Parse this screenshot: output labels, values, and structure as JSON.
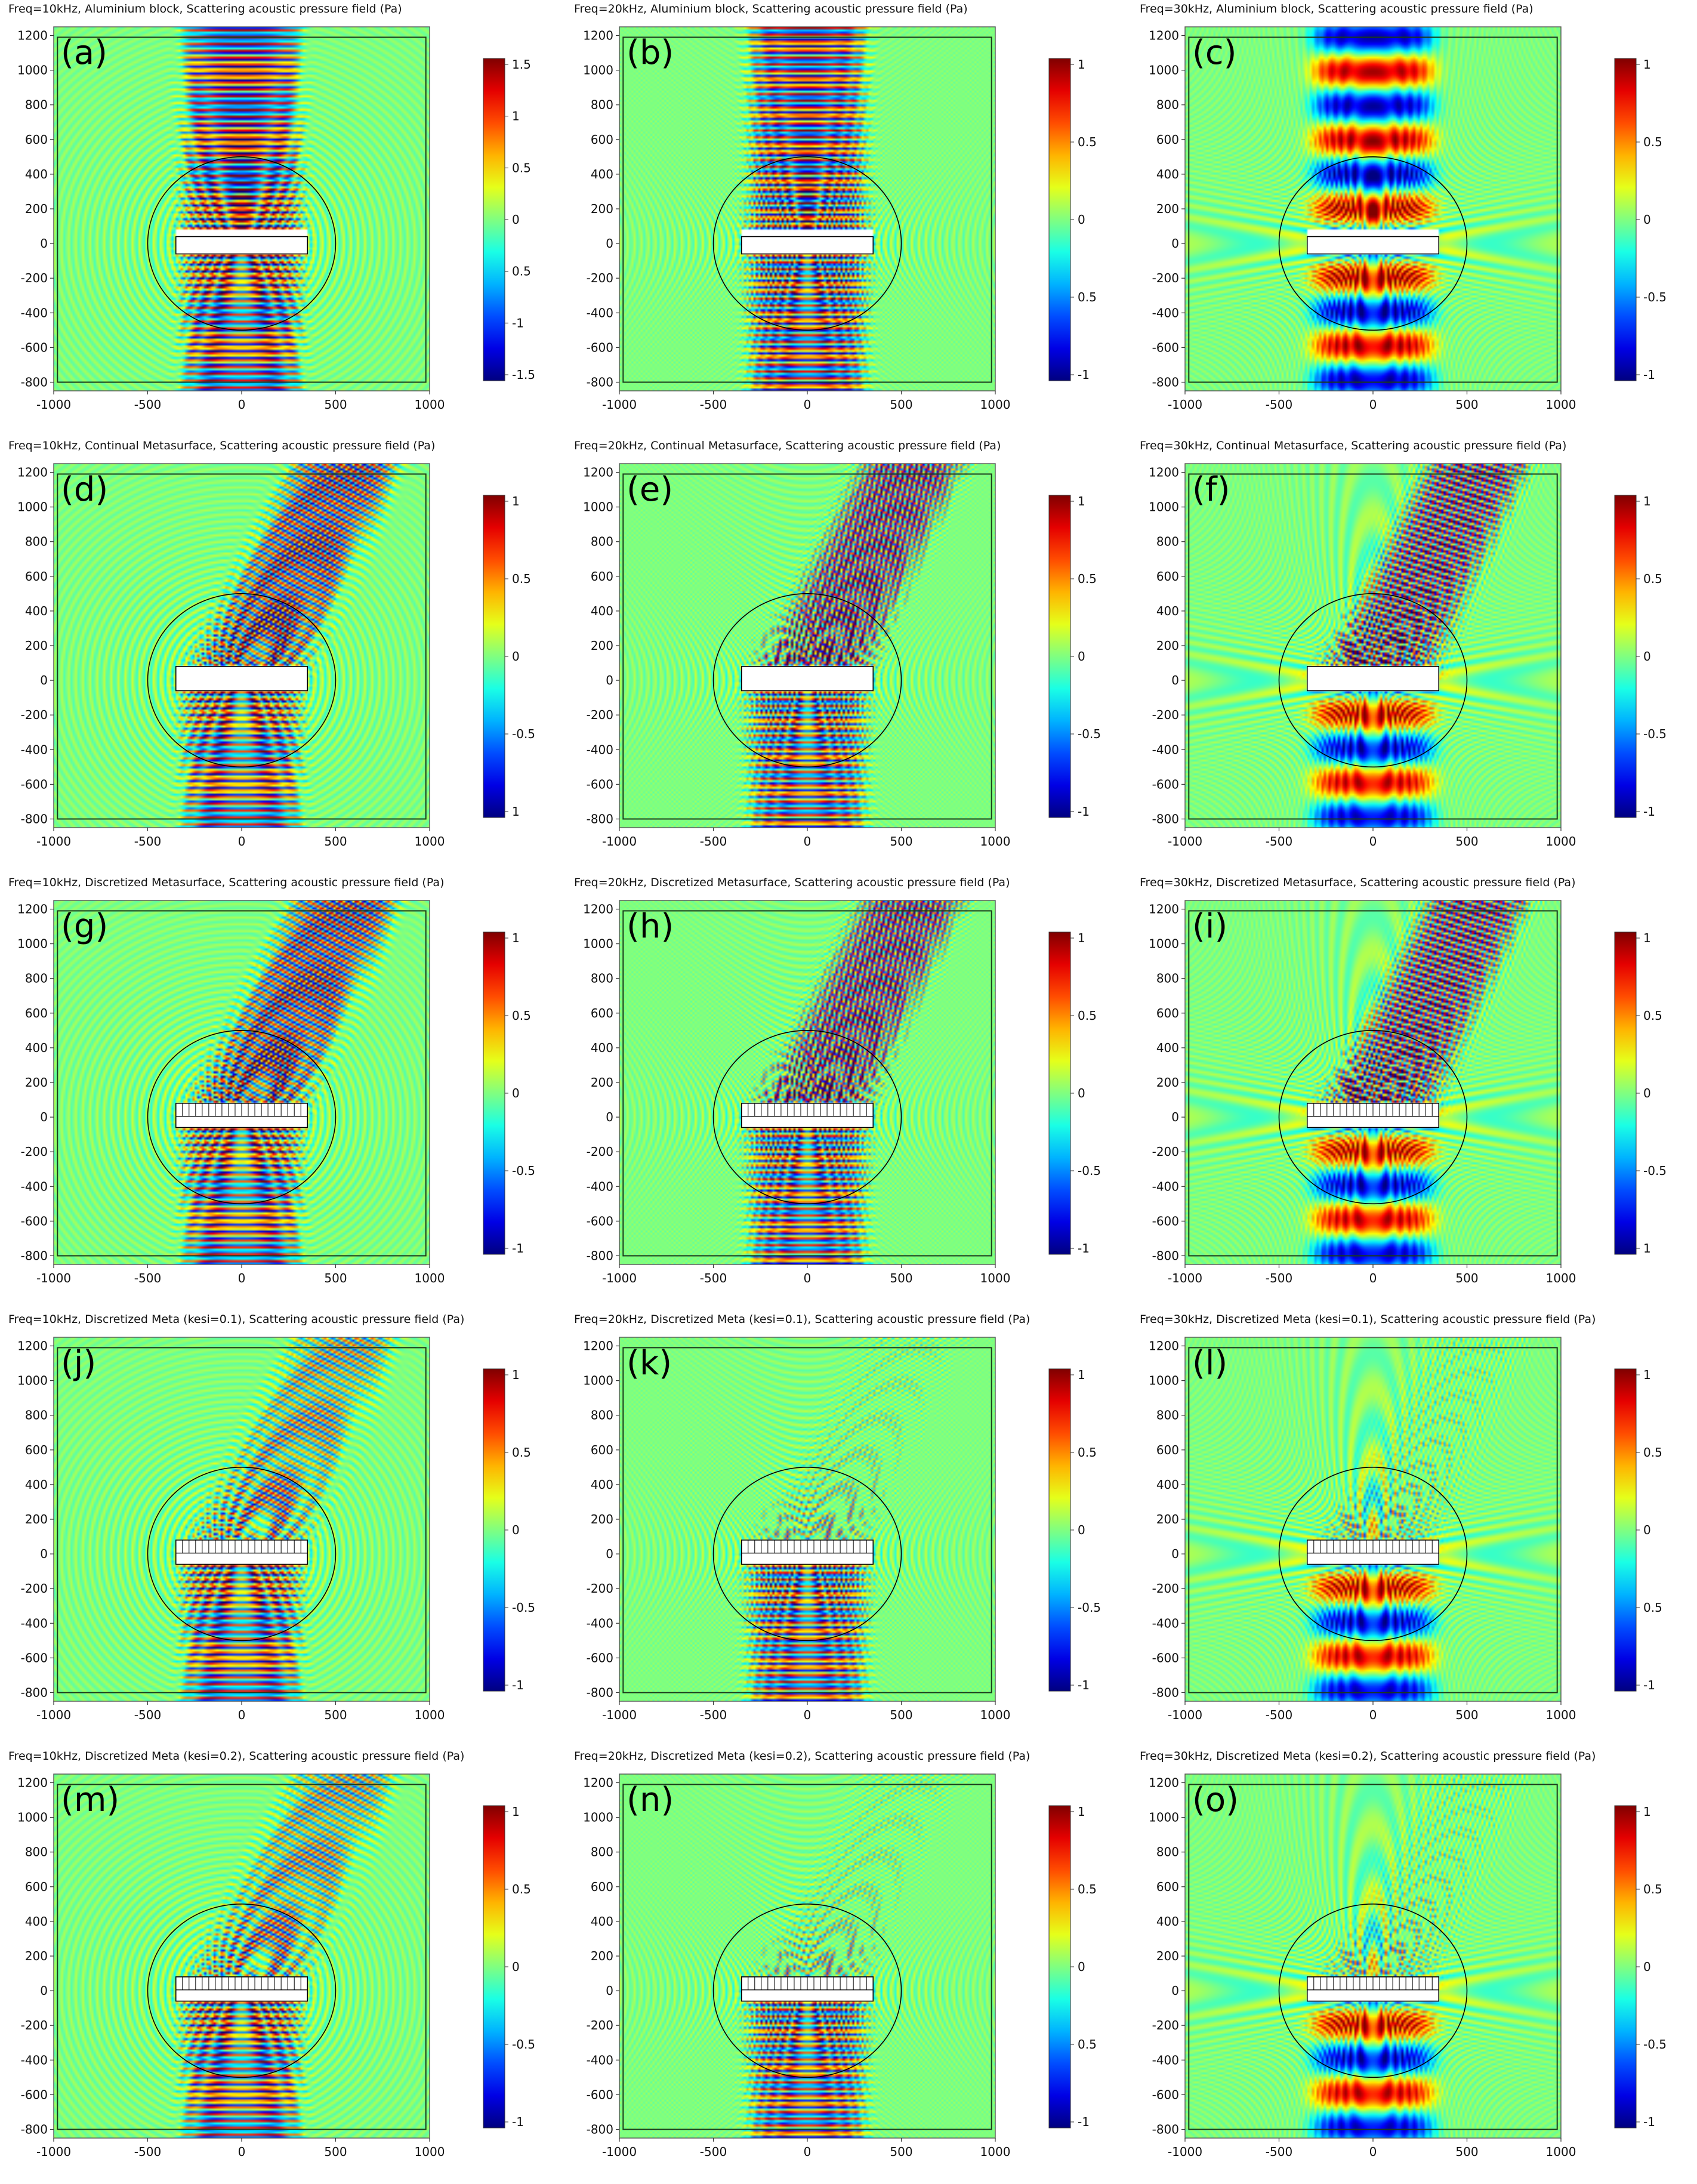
{
  "figure": {
    "rows": 5,
    "cols": 3
  },
  "chart_data": [
    {
      "type": "heatmap",
      "panel_label": "(a)",
      "title": "Freq=10kHz, Aluminium block, Scattering acoustic pressure field (Pa)",
      "freq_khz": 10,
      "structure": "aluminium",
      "xlim": [
        -1000,
        1000
      ],
      "ylim": [
        -850,
        1250
      ],
      "xticks": [
        -1000,
        -500,
        0,
        500,
        1000
      ],
      "yticks": [
        -800,
        -600,
        -400,
        -200,
        0,
        200,
        400,
        600,
        800,
        1000,
        1200
      ],
      "colorbar": {
        "min": -1.5,
        "max": 1.5,
        "ticks": [
          "1.5",
          "1",
          "0.5",
          "0",
          "0.5",
          "-1",
          "-1.5"
        ]
      },
      "colormap": "jet",
      "beam": "normal"
    },
    {
      "type": "heatmap",
      "panel_label": "(b)",
      "title": "Freq=20kHz, Aluminium block, Scattering acoustic pressure field (Pa)",
      "freq_khz": 20,
      "structure": "aluminium",
      "xlim": [
        -1000,
        1000
      ],
      "ylim": [
        -850,
        1250
      ],
      "xticks": [
        -1000,
        -500,
        0,
        500,
        1000
      ],
      "yticks": [
        -800,
        -600,
        -400,
        -200,
        0,
        200,
        400,
        600,
        800,
        1000,
        1200
      ],
      "colorbar": {
        "min": -1.5,
        "max": 1.5,
        "ticks": [
          "1",
          "0.5",
          "0",
          "0.5",
          "-1"
        ]
      },
      "colormap": "jet",
      "beam": "normal"
    },
    {
      "type": "heatmap",
      "panel_label": "(c)",
      "title": "Freq=30kHz, Aluminium block, Scattering acoustic pressure field (Pa)",
      "freq_khz": 30,
      "structure": "aluminium",
      "xlim": [
        -1000,
        1000
      ],
      "ylim": [
        -850,
        1250
      ],
      "xticks": [
        -1000,
        -500,
        0,
        500,
        1000
      ],
      "yticks": [
        -800,
        -600,
        -400,
        -200,
        0,
        200,
        400,
        600,
        800,
        1000,
        1200
      ],
      "colorbar": {
        "min": -1.5,
        "max": 1.5,
        "ticks": [
          "1",
          "0.5",
          "0",
          "-0.5",
          "-1"
        ]
      },
      "colormap": "jet",
      "beam": "normal"
    },
    {
      "type": "heatmap",
      "panel_label": "(d)",
      "title": "Freq=10kHz, Continual Metasurface, Scattering acoustic pressure field (Pa)",
      "freq_khz": 10,
      "structure": "continual",
      "xlim": [
        -1000,
        1000
      ],
      "ylim": [
        -850,
        1250
      ],
      "xticks": [
        -1000,
        -500,
        0,
        500,
        1000
      ],
      "yticks": [
        -800,
        -600,
        -400,
        -200,
        0,
        200,
        400,
        600,
        800,
        1000,
        1200
      ],
      "colorbar": {
        "min": -1.2,
        "max": 1.2,
        "ticks": [
          "1",
          "0.5",
          "0",
          "-0.5",
          "1"
        ]
      },
      "colormap": "jet",
      "beam": "steered"
    },
    {
      "type": "heatmap",
      "panel_label": "(e)",
      "title": "Freq=20kHz, Continual Metasurface, Scattering acoustic pressure field (Pa)",
      "freq_khz": 20,
      "structure": "continual",
      "xlim": [
        -1000,
        1000
      ],
      "ylim": [
        -850,
        1250
      ],
      "xticks": [
        -1000,
        -500,
        0,
        500,
        1000
      ],
      "yticks": [
        -800,
        -600,
        -400,
        -200,
        0,
        200,
        400,
        600,
        800,
        1000,
        1200
      ],
      "colorbar": {
        "min": -1.2,
        "max": 1.2,
        "ticks": [
          "1",
          "0.5",
          "0",
          "-0.5",
          "-1"
        ]
      },
      "colormap": "jet",
      "beam": "steered"
    },
    {
      "type": "heatmap",
      "panel_label": "(f)",
      "title": "Freq=30kHz, Continual Metasurface, Scattering acoustic pressure field (Pa)",
      "freq_khz": 30,
      "structure": "continual",
      "xlim": [
        -1000,
        1000
      ],
      "ylim": [
        -850,
        1250
      ],
      "xticks": [
        -1000,
        -500,
        0,
        500,
        1000
      ],
      "yticks": [
        -800,
        -600,
        -400,
        -200,
        0,
        200,
        400,
        600,
        800,
        1000,
        1200
      ],
      "colorbar": {
        "min": -1.2,
        "max": 1.2,
        "ticks": [
          "1",
          "0.5",
          "0",
          "-0.5",
          "-1"
        ]
      },
      "colormap": "jet",
      "beam": "steered"
    },
    {
      "type": "heatmap",
      "panel_label": "(g)",
      "title": "Freq=10kHz, Discretized Metasurface, Scattering acoustic pressure field (Pa)",
      "freq_khz": 10,
      "structure": "discretized",
      "xlim": [
        -1000,
        1000
      ],
      "ylim": [
        -850,
        1250
      ],
      "xticks": [
        -1000,
        -500,
        0,
        500,
        1000
      ],
      "yticks": [
        -800,
        -600,
        -400,
        -200,
        0,
        200,
        400,
        600,
        800,
        1000,
        1200
      ],
      "colorbar": {
        "min": -1.2,
        "max": 1.2,
        "ticks": [
          "1",
          "0.5",
          "0",
          "-0.5",
          "-1"
        ]
      },
      "colormap": "jet",
      "beam": "steered"
    },
    {
      "type": "heatmap",
      "panel_label": "(h)",
      "title": "Freq=20kHz, Discretized Metasurface, Scattering acoustic pressure field (Pa)",
      "freq_khz": 20,
      "structure": "discretized",
      "xlim": [
        -1000,
        1000
      ],
      "ylim": [
        -850,
        1250
      ],
      "xticks": [
        -1000,
        -500,
        0,
        500,
        1000
      ],
      "yticks": [
        -800,
        -600,
        -400,
        -200,
        0,
        200,
        400,
        600,
        800,
        1000,
        1200
      ],
      "colorbar": {
        "min": -1.2,
        "max": 1.2,
        "ticks": [
          "1",
          "0.5",
          "0",
          "-0.5",
          "-1"
        ]
      },
      "colormap": "jet",
      "beam": "steered"
    },
    {
      "type": "heatmap",
      "panel_label": "(i)",
      "title": "Freq=30kHz, Discretized Metasurface, Scattering acoustic pressure field (Pa)",
      "freq_khz": 30,
      "structure": "discretized",
      "xlim": [
        -1000,
        1000
      ],
      "ylim": [
        -850,
        1250
      ],
      "xticks": [
        -1000,
        -500,
        0,
        500,
        1000
      ],
      "yticks": [
        -800,
        -600,
        -400,
        -200,
        0,
        200,
        400,
        600,
        800,
        1000,
        1200
      ],
      "colorbar": {
        "min": -1.2,
        "max": 1.2,
        "ticks": [
          "1",
          "0.5",
          "0",
          "-0.5",
          "1"
        ]
      },
      "colormap": "jet",
      "beam": "steered"
    },
    {
      "type": "heatmap",
      "panel_label": "(j)",
      "title": "Freq=10kHz, Discretized Meta (kesi=0.1), Scattering acoustic pressure field (Pa)",
      "freq_khz": 10,
      "structure": "discretized",
      "xlim": [
        -1000,
        1000
      ],
      "ylim": [
        -850,
        1250
      ],
      "xticks": [
        -1000,
        -500,
        0,
        500,
        1000
      ],
      "yticks": [
        -800,
        -600,
        -400,
        -200,
        0,
        200,
        400,
        600,
        800,
        1000,
        1200
      ],
      "colorbar": {
        "min": -1.2,
        "max": 1.2,
        "ticks": [
          "1",
          "0.5",
          "0",
          "-0.5",
          "-1"
        ]
      },
      "colormap": "jet",
      "beam": "steered_weak"
    },
    {
      "type": "heatmap",
      "panel_label": "(k)",
      "title": "Freq=20kHz, Discretized Meta (kesi=0.1), Scattering acoustic pressure field (Pa)",
      "freq_khz": 20,
      "structure": "discretized",
      "xlim": [
        -1000,
        1000
      ],
      "ylim": [
        -850,
        1250
      ],
      "xticks": [
        -1000,
        -500,
        0,
        500,
        1000
      ],
      "yticks": [
        -800,
        -600,
        -400,
        -200,
        0,
        200,
        400,
        600,
        800,
        1000,
        1200
      ],
      "colorbar": {
        "min": -1.2,
        "max": 1.2,
        "ticks": [
          "1",
          "0.5",
          "0",
          "-0.5",
          "-1"
        ]
      },
      "colormap": "jet",
      "beam": "weak"
    },
    {
      "type": "heatmap",
      "panel_label": "(l)",
      "title": "Freq=30kHz, Discretized Meta (kesi=0.1), Scattering acoustic pressure field (Pa)",
      "freq_khz": 30,
      "structure": "discretized",
      "xlim": [
        -1000,
        1000
      ],
      "ylim": [
        -850,
        1250
      ],
      "xticks": [
        -1000,
        -500,
        0,
        500,
        1000
      ],
      "yticks": [
        -800,
        -600,
        -400,
        -200,
        0,
        200,
        400,
        600,
        800,
        1000,
        1200
      ],
      "colorbar": {
        "min": -1.2,
        "max": 1.2,
        "ticks": [
          "1",
          "0.5",
          "0",
          "0.5",
          "-1"
        ]
      },
      "colormap": "jet",
      "beam": "weak"
    },
    {
      "type": "heatmap",
      "panel_label": "(m)",
      "title": "Freq=10kHz, Discretized Meta  (kesi=0.2), Scattering acoustic pressure field (Pa)",
      "freq_khz": 10,
      "structure": "discretized",
      "xlim": [
        -1000,
        1000
      ],
      "ylim": [
        -850,
        1250
      ],
      "xticks": [
        -1000,
        -500,
        0,
        500,
        1000
      ],
      "yticks": [
        -800,
        -600,
        -400,
        -200,
        0,
        200,
        400,
        600,
        800,
        1000,
        1200
      ],
      "colorbar": {
        "min": -1.2,
        "max": 1.2,
        "ticks": [
          "1",
          "0.5",
          "0",
          "-0.5",
          "-1"
        ]
      },
      "colormap": "jet",
      "beam": "steered_weak"
    },
    {
      "type": "heatmap",
      "panel_label": "(n)",
      "title": "Freq=20kHz, Discretized Meta  (kesi=0.2), Scattering acoustic pressure field (Pa)",
      "freq_khz": 20,
      "structure": "discretized",
      "xlim": [
        -1000,
        1000
      ],
      "ylim": [
        -850,
        1250
      ],
      "xticks": [
        -1000,
        -500,
        0,
        500,
        1000
      ],
      "yticks": [
        -800,
        -600,
        -400,
        -200,
        0,
        200,
        400,
        600,
        800,
        1000,
        1200
      ],
      "colorbar": {
        "min": -1.2,
        "max": 1.2,
        "ticks": [
          "1",
          "0.5",
          "0",
          "0.5",
          "-1"
        ]
      },
      "colormap": "jet",
      "beam": "weak"
    },
    {
      "type": "heatmap",
      "panel_label": "(o)",
      "title": "Freq=30kHz, Discretized Meta  (kesi=0.2), Scattering acoustic pressure field (Pa)",
      "freq_khz": 30,
      "structure": "discretized",
      "xlim": [
        -1000,
        1000
      ],
      "ylim": [
        -850,
        1250
      ],
      "xticks": [
        -1000,
        -500,
        0,
        500,
        1000
      ],
      "yticks": [
        -800,
        -600,
        -400,
        -200,
        0,
        200,
        400,
        600,
        800,
        1000,
        1200
      ],
      "colorbar": {
        "min": -1.2,
        "max": 1.2,
        "ticks": [
          "1",
          "0.5",
          "0",
          "-0.5",
          "-1"
        ]
      },
      "colormap": "jet",
      "beam": "weak"
    }
  ]
}
